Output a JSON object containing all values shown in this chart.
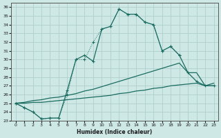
{
  "bg_color": "#cde8e5",
  "grid_color": "#b0d0cc",
  "line_color": "#1a6b60",
  "xlabel": "Humidex (Indice chaleur)",
  "xlim": [
    -0.5,
    23.5
  ],
  "ylim": [
    23,
    36.5
  ],
  "xticks": [
    0,
    1,
    2,
    3,
    4,
    5,
    6,
    7,
    8,
    9,
    10,
    11,
    12,
    13,
    14,
    15,
    16,
    17,
    18,
    19,
    20,
    21,
    22,
    23
  ],
  "yticks": [
    23,
    24,
    25,
    26,
    27,
    28,
    29,
    30,
    31,
    32,
    33,
    34,
    35,
    36
  ],
  "s1_x": [
    0,
    1,
    2,
    3,
    4,
    5,
    6,
    7,
    8,
    9,
    10,
    11,
    12,
    13,
    14,
    15,
    16,
    17,
    18,
    19
  ],
  "s1_y": [
    25.0,
    24.5,
    24.0,
    23.2,
    23.3,
    23.3,
    26.0,
    30.0,
    30.0,
    32.0,
    33.5,
    33.8,
    35.8,
    35.2,
    35.2,
    34.3,
    34.0,
    31.0,
    31.5,
    30.5
  ],
  "s2_x": [
    0,
    1,
    2,
    3,
    4,
    5,
    6,
    7,
    8,
    9,
    10,
    11,
    12,
    13,
    14,
    15,
    16,
    17,
    18,
    19,
    20,
    21,
    22,
    23
  ],
  "s2_y": [
    25.0,
    24.5,
    24.0,
    23.2,
    23.3,
    23.3,
    26.5,
    30.0,
    30.5,
    29.8,
    33.5,
    33.8,
    35.8,
    35.2,
    35.2,
    34.3,
    34.0,
    31.0,
    31.5,
    30.5,
    28.5,
    27.5,
    27.0,
    27.0
  ],
  "s3_x": [
    0,
    1,
    2,
    3,
    4,
    5,
    6,
    7,
    8,
    9,
    10,
    11,
    12,
    13,
    14,
    15,
    16,
    17,
    18,
    19,
    20,
    21,
    22,
    23
  ],
  "s3_y": [
    25.0,
    25.1,
    25.3,
    25.4,
    25.6,
    25.7,
    25.9,
    26.1,
    26.4,
    26.6,
    26.9,
    27.2,
    27.5,
    27.8,
    28.1,
    28.4,
    28.7,
    29.0,
    29.3,
    29.6,
    28.5,
    28.5,
    27.0,
    27.3
  ],
  "s4_x": [
    0,
    1,
    2,
    3,
    4,
    5,
    6,
    7,
    8,
    9,
    10,
    11,
    12,
    13,
    14,
    15,
    16,
    17,
    18,
    19,
    20,
    21,
    22,
    23
  ],
  "s4_y": [
    25.0,
    25.0,
    25.1,
    25.1,
    25.2,
    25.3,
    25.4,
    25.5,
    25.6,
    25.7,
    25.8,
    25.9,
    26.1,
    26.2,
    26.4,
    26.5,
    26.7,
    26.8,
    27.0,
    27.1,
    27.2,
    27.3,
    27.0,
    27.0
  ]
}
